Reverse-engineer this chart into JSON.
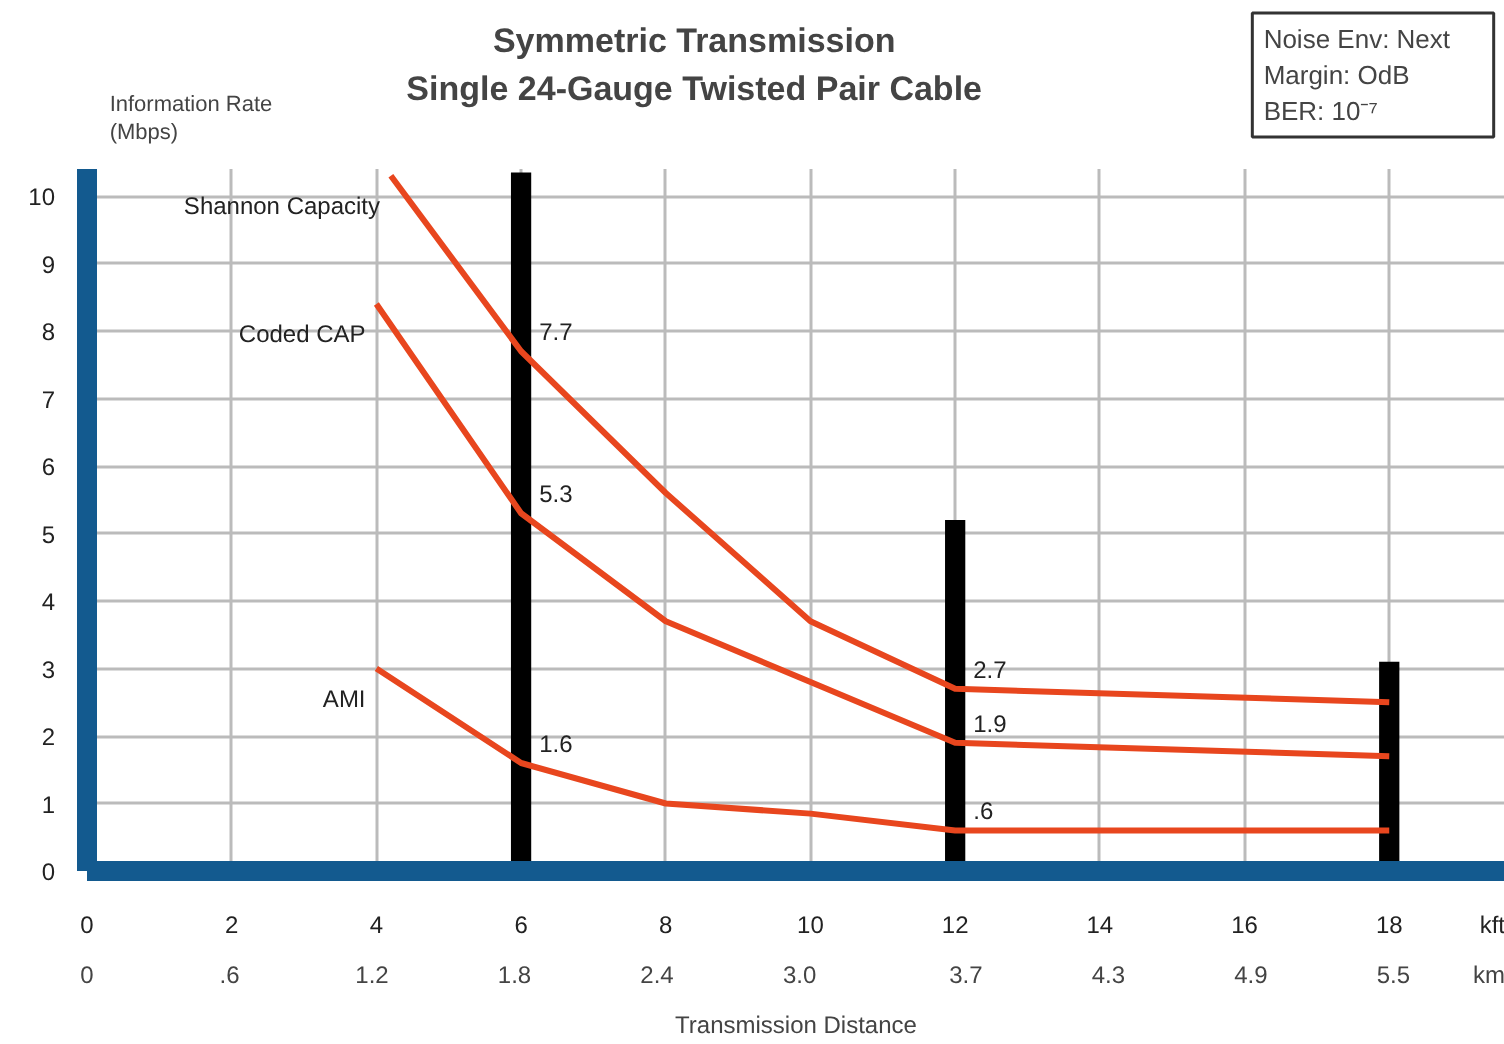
{
  "chart_data": {
    "type": "line",
    "title": "Symmetric Transmission",
    "subtitle": "Single 24-Gauge Twisted Pair Cable",
    "xlabel": "Transmission Distance",
    "ylabel": "Information Rate (Mbps)",
    "annotations": [
      "Noise Env: Next",
      "Margin: OdB",
      "BER: 10⁻⁷"
    ],
    "xlim": [
      0,
      19.6
    ],
    "ylim": [
      0,
      10.4
    ],
    "xticks": [
      0,
      2,
      4,
      6,
      8,
      10,
      12,
      14,
      16,
      18,
      {
        "value": 19.5,
        "label": "kft"
      }
    ],
    "x2lim": [
      0,
      5.97
    ],
    "x2ticks": [
      0,
      {
        "value": 0.6,
        "label": ".6"
      },
      1.2,
      1.8,
      2.4,
      {
        "value": 3.0,
        "label": "3.0"
      },
      3.7,
      4.3,
      4.9,
      5.5,
      {
        "value": 5.94,
        "label": "km"
      }
    ],
    "yticks": [
      0,
      1,
      2,
      3,
      4,
      5,
      6,
      7,
      8,
      9,
      10
    ],
    "grid": true,
    "marker": "none",
    "line_style": "solid",
    "series": [
      {
        "name": "Shannon Capacity",
        "color": "#e8461e",
        "x": [
          4.2,
          6,
          8,
          10,
          12,
          18
        ],
        "values": [
          10.3,
          7.7,
          5.6,
          3.7,
          2.7,
          2.5
        ],
        "value_labels": [
          null,
          "7.7",
          null,
          null,
          "2.7",
          null
        ]
      },
      {
        "name": "Coded CAP",
        "color": "#e8461e",
        "x": [
          4,
          6,
          8,
          10,
          12,
          18
        ],
        "values": [
          8.4,
          5.3,
          3.7,
          2.8,
          1.9,
          1.7
        ],
        "value_labels": [
          null,
          "5.3",
          null,
          null,
          "1.9",
          null
        ]
      },
      {
        "name": "AMI",
        "color": "#e8461e",
        "x": [
          4,
          6,
          8,
          10,
          12,
          18
        ],
        "values": [
          3.0,
          1.6,
          1.0,
          0.85,
          0.6,
          0.6
        ],
        "value_labels": [
          null,
          "1.6",
          null,
          null,
          ".6",
          null
        ]
      },
      {
        "type": "bar",
        "color": "#000000",
        "x": [
          6,
          12,
          18
        ],
        "values": [
          10.35,
          5.2,
          3.1
        ]
      }
    ]
  }
}
